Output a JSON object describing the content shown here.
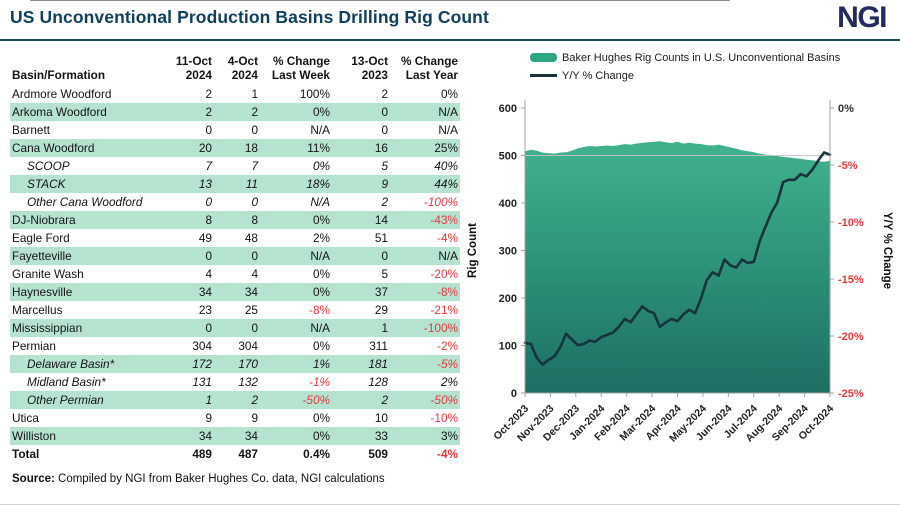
{
  "header": {
    "title": "US Unconventional Production Basins Drilling Rig Count",
    "logo": "NGI"
  },
  "table": {
    "name_header": "Basin/Formation",
    "columns": [
      {
        "l1": "11-Oct",
        "l2": "2024"
      },
      {
        "l1": "4-Oct",
        "l2": "2024"
      },
      {
        "l1": "% Change",
        "l2": "Last Week"
      },
      {
        "l1": "13-Oct",
        "l2": "2023"
      },
      {
        "l1": "% Change",
        "l2": "Last Year"
      }
    ],
    "rows": [
      {
        "name": "Ardmore Woodford",
        "style": "normal",
        "highlight": false,
        "values": [
          "2",
          "1",
          "100%",
          "2",
          "0%"
        ]
      },
      {
        "name": "Arkoma Woodford",
        "style": "normal",
        "highlight": true,
        "values": [
          "2",
          "2",
          "0%",
          "0",
          "N/A"
        ]
      },
      {
        "name": "Barnett",
        "style": "normal",
        "highlight": false,
        "values": [
          "0",
          "0",
          "N/A",
          "0",
          "N/A"
        ]
      },
      {
        "name": "Cana Woodford",
        "style": "normal",
        "highlight": true,
        "values": [
          "20",
          "18",
          "11%",
          "16",
          "25%"
        ]
      },
      {
        "name": "SCOOP",
        "style": "sub",
        "highlight": false,
        "values": [
          "7",
          "7",
          "0%",
          "5",
          "40%"
        ]
      },
      {
        "name": "STACK",
        "style": "sub",
        "highlight": true,
        "values": [
          "13",
          "11",
          "18%",
          "9",
          "44%"
        ]
      },
      {
        "name": "Other Cana Woodford",
        "style": "sub",
        "highlight": false,
        "values": [
          "0",
          "0",
          "N/A",
          "2",
          "-100%"
        ]
      },
      {
        "name": "DJ-Niobrara",
        "style": "normal",
        "highlight": true,
        "values": [
          "8",
          "8",
          "0%",
          "14",
          "-43%"
        ]
      },
      {
        "name": "Eagle Ford",
        "style": "normal",
        "highlight": false,
        "values": [
          "49",
          "48",
          "2%",
          "51",
          "-4%"
        ]
      },
      {
        "name": "Fayetteville",
        "style": "normal",
        "highlight": true,
        "values": [
          "0",
          "0",
          "N/A",
          "0",
          "N/A"
        ]
      },
      {
        "name": "Granite Wash",
        "style": "normal",
        "highlight": false,
        "values": [
          "4",
          "4",
          "0%",
          "5",
          "-20%"
        ]
      },
      {
        "name": "Haynesville",
        "style": "normal",
        "highlight": true,
        "values": [
          "34",
          "34",
          "0%",
          "37",
          "-8%"
        ]
      },
      {
        "name": "Marcellus",
        "style": "normal",
        "highlight": false,
        "values": [
          "23",
          "25",
          "-8%",
          "29",
          "-21%"
        ]
      },
      {
        "name": "Mississippian",
        "style": "normal",
        "highlight": true,
        "values": [
          "0",
          "0",
          "N/A",
          "1",
          "-100%"
        ]
      },
      {
        "name": "Permian",
        "style": "normal",
        "highlight": false,
        "values": [
          "304",
          "304",
          "0%",
          "311",
          "-2%"
        ]
      },
      {
        "name": "Delaware Basin*",
        "style": "sub",
        "highlight": true,
        "values": [
          "172",
          "170",
          "1%",
          "181",
          "-5%"
        ]
      },
      {
        "name": "Midland Basin*",
        "style": "sub",
        "highlight": false,
        "values": [
          "131",
          "132",
          "-1%",
          "128",
          "2%"
        ]
      },
      {
        "name": "Other Permian",
        "style": "sub",
        "highlight": true,
        "values": [
          "1",
          "2",
          "-50%",
          "2",
          "-50%"
        ]
      },
      {
        "name": "Utica",
        "style": "normal",
        "highlight": false,
        "values": [
          "9",
          "9",
          "0%",
          "10",
          "-10%"
        ]
      },
      {
        "name": "Williston",
        "style": "normal",
        "highlight": true,
        "values": [
          "34",
          "34",
          "0%",
          "33",
          "3%"
        ]
      },
      {
        "name": "Total",
        "style": "total",
        "highlight": false,
        "values": [
          "489",
          "487",
          "0.4%",
          "509",
          "-4%"
        ]
      }
    ],
    "source_label": "Source:",
    "source_text": "Compiled by NGI from Baker Hughes Co. data, NGI calculations"
  },
  "chart_data": {
    "type": "area+line",
    "legend": [
      {
        "label": "Baker Hughes Rig Counts in U.S. Unconventional Basins",
        "swatch": "area",
        "color": "#2ea583"
      },
      {
        "label": "Y/Y % Change",
        "swatch": "line",
        "color": "#17343c"
      }
    ],
    "x_tick_labels": [
      "Oct-2023",
      "Nov-2023",
      "Dec-2023",
      "Jan-2024",
      "Feb-2024",
      "Mar-2024",
      "Apr-2024",
      "May-2024",
      "Jun-2024",
      "Jul-2024",
      "Aug-2024",
      "Sep-2024",
      "Oct-2024"
    ],
    "left_axis": {
      "title": "Rig Count",
      "min": 0,
      "max": 600,
      "step": 100
    },
    "right_axis": {
      "title": "Y/Y % Change",
      "min": -25,
      "max": 0,
      "step": 5,
      "zero_label_color": "#333333",
      "negative_label_color": "#e8393d"
    },
    "gridline_at_left_value": 500,
    "series": [
      {
        "name": "Baker Hughes Rig Counts in U.S. Unconventional Basins",
        "type": "area",
        "axis": "left",
        "color_top": "#41b28e",
        "color_mid": "#2b8e77",
        "color_bottom": "#1d6e62",
        "values": [
          509,
          512,
          510,
          506,
          505,
          504,
          506,
          507,
          510,
          515,
          518,
          520,
          519,
          520,
          521,
          520,
          522,
          524,
          523,
          525,
          527,
          528,
          529,
          530,
          528,
          526,
          529,
          525,
          527,
          525,
          524,
          522,
          521,
          523,
          520,
          517,
          514,
          511,
          509,
          507,
          504,
          502,
          501,
          499,
          497,
          496,
          494,
          493,
          491,
          490,
          488,
          487,
          489
        ]
      },
      {
        "name": "Y/Y % Change",
        "type": "line",
        "axis": "right",
        "color": "#17343c",
        "values": [
          -20.6,
          -20.7,
          -21.9,
          -22.5,
          -22.1,
          -21.8,
          -21.0,
          -19.8,
          -20.3,
          -20.8,
          -20.7,
          -20.4,
          -20.5,
          -20.1,
          -19.9,
          -19.7,
          -19.2,
          -18.5,
          -18.8,
          -18.1,
          -17.4,
          -17.8,
          -18.0,
          -19.2,
          -18.8,
          -18.5,
          -18.7,
          -18.1,
          -17.7,
          -18.0,
          -16.7,
          -15.1,
          -14.4,
          -14.7,
          -13.3,
          -13.8,
          -14.0,
          -13.3,
          -13.6,
          -13.5,
          -11.7,
          -10.4,
          -9.2,
          -8.3,
          -6.5,
          -6.3,
          -6.3,
          -5.8,
          -6.0,
          -5.4,
          -4.6,
          -3.9,
          -4.1
        ]
      }
    ]
  },
  "colors": {
    "title": "#10405c",
    "logo": "#232a5c",
    "divider": "#1b4a5a",
    "row_highlight": "#b5e3d0",
    "negative": "#e8393d"
  }
}
